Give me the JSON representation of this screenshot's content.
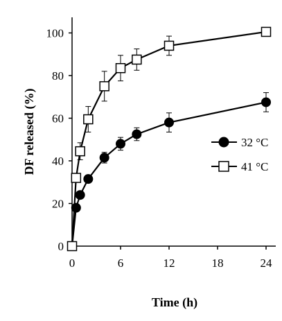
{
  "chart_data": {
    "type": "line",
    "xlabel": "Time (h)",
    "ylabel": "DF released (%)",
    "xlim": [
      0,
      25
    ],
    "ylim": [
      0,
      105
    ],
    "xticks": [
      0,
      6,
      12,
      18,
      24
    ],
    "yticks": [
      0,
      20,
      40,
      60,
      80,
      100
    ],
    "grid": false,
    "legend_position": "right",
    "series": [
      {
        "name": "32 °C",
        "marker": "filled-circle",
        "color": "#000000",
        "x": [
          0,
          0.5,
          1,
          2,
          4,
          6,
          8,
          12,
          24
        ],
        "y": [
          0,
          18,
          24,
          31.5,
          41.5,
          48,
          52.5,
          58,
          67.5
        ],
        "error": [
          0,
          0,
          0,
          0,
          2.5,
          3,
          3,
          4.5,
          4.5
        ]
      },
      {
        "name": "41 °C",
        "marker": "open-square",
        "color": "#000000",
        "x": [
          0,
          0.5,
          1,
          2,
          4,
          6,
          8,
          12,
          24
        ],
        "y": [
          0,
          32,
          44.5,
          59.5,
          75,
          83.5,
          87.5,
          94,
          100.5
        ],
        "error": [
          0,
          0,
          4,
          6,
          7,
          6,
          5,
          4.5,
          2
        ]
      }
    ]
  }
}
